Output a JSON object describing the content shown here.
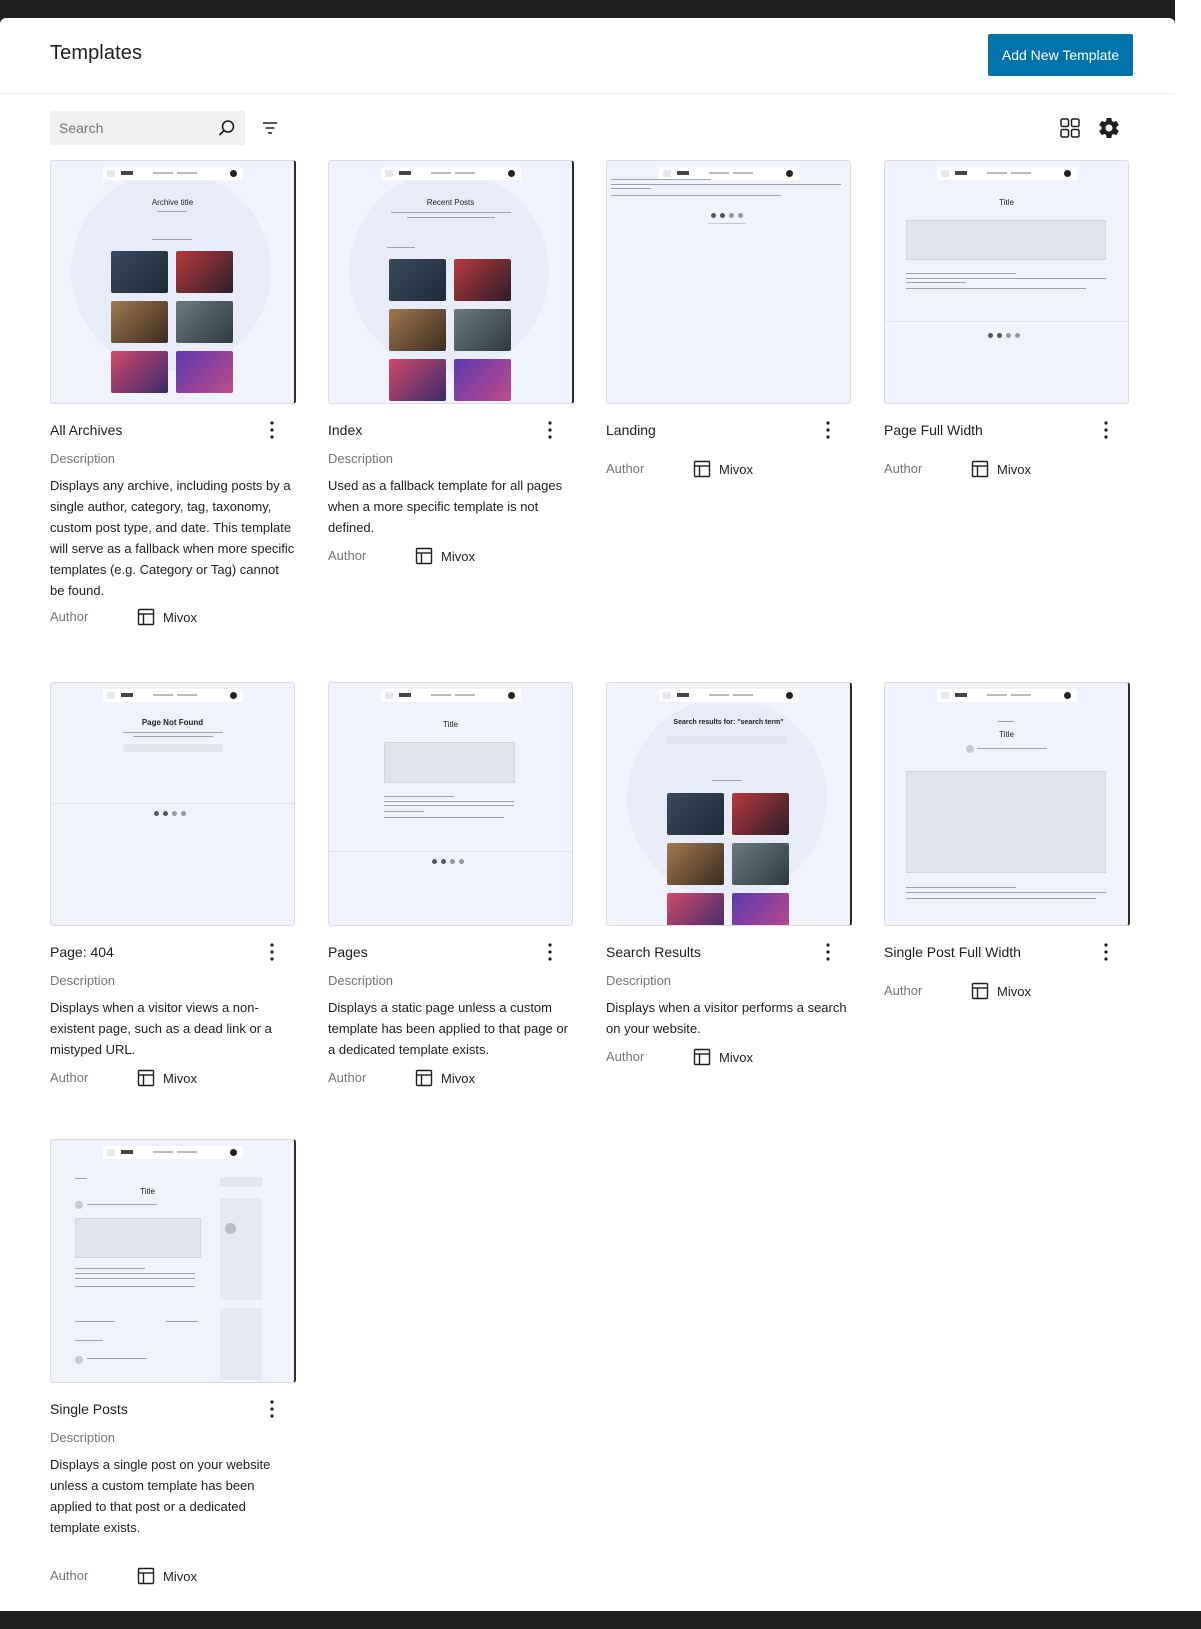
{
  "page": {
    "title": "Templates",
    "add_button": "Add New Template",
    "search_placeholder": "Search"
  },
  "labels": {
    "description": "Description",
    "author": "Author"
  },
  "thumb_text": {
    "archive_title": "Archive title",
    "recent_posts": "Recent Posts",
    "title": "Title",
    "page_not_found": "Page Not Found",
    "search_results": "Search results for: \"search term\""
  },
  "templates": [
    {
      "name": "All Archives",
      "description": "Displays any archive, including posts by a single author, category, tag, taxonomy, custom post type, and date. This template will serve as a fallback when more specific templates (e.g. Category or Tag) cannot be found.",
      "author": "Mivox"
    },
    {
      "name": "Index",
      "description": "Used as a fallback template for all pages when a more specific template is not defined.",
      "author": "Mivox"
    },
    {
      "name": "Landing",
      "description": "",
      "author": "Mivox"
    },
    {
      "name": "Page Full Width",
      "description": "",
      "author": "Mivox"
    },
    {
      "name": "Page: 404",
      "description": "Displays when a visitor views a non-existent page, such as a dead link or a mistyped URL.",
      "author": "Mivox"
    },
    {
      "name": "Pages",
      "description": "Displays a static page unless a custom template has been applied to that page or a dedicated template exists.",
      "author": "Mivox"
    },
    {
      "name": "Search Results",
      "description": "Displays when a visitor performs a search on your website.",
      "author": "Mivox"
    },
    {
      "name": "Single Post Full Width",
      "description": "",
      "author": "Mivox"
    },
    {
      "name": "Single Posts",
      "description": "Displays a single post on your website unless a custom template has been applied to that post or a dedicated template exists.",
      "author": "Mivox"
    }
  ],
  "colors": {
    "primary": "#0073aa",
    "thumb_bg": "#f0f3fe",
    "muted_text": "#757575"
  },
  "icons": {
    "search": "search-icon",
    "filter": "filter-icon",
    "layout": "grid-view-icon",
    "settings": "gear-icon",
    "more": "more-vertical-icon",
    "author": "layout-template-icon"
  }
}
